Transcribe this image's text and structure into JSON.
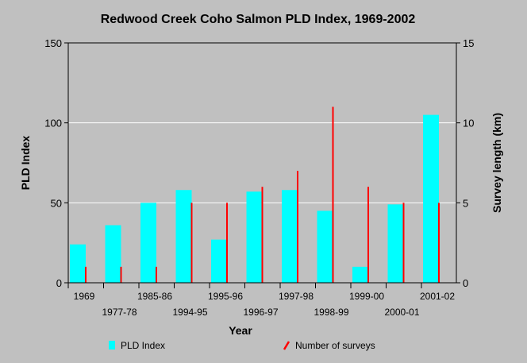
{
  "chart_data": {
    "type": "bar",
    "title": "Redwood Creek Coho Salmon PLD Index, 1969-2002",
    "xlabel": "Year",
    "ylabel": "PLD Index",
    "y2label": "Survey length (km)",
    "ylim": [
      0,
      150
    ],
    "y2lim": [
      0,
      15
    ],
    "yticks": [
      0,
      50,
      100,
      150
    ],
    "y2ticks": [
      0,
      5,
      10,
      15
    ],
    "grid": true,
    "legend_position": "bottom",
    "categories": [
      "1969",
      "1977-78",
      "1985-86",
      "1994-95",
      "1995-96",
      "1996-97",
      "1997-98",
      "1998-99",
      "1999-00",
      "2000-01",
      "2001-02"
    ],
    "series": [
      {
        "name": "PLD Index",
        "axis": "left",
        "mark": "bar",
        "color": "#00ffff",
        "values": [
          24,
          36,
          50,
          58,
          27,
          57,
          58,
          45,
          10,
          49,
          105
        ]
      },
      {
        "name": "Number of surveys",
        "axis": "right",
        "mark": "line",
        "color": "#ff0000",
        "values": [
          1,
          1,
          1,
          5,
          5,
          6,
          7,
          11,
          6,
          5,
          5
        ]
      }
    ]
  }
}
